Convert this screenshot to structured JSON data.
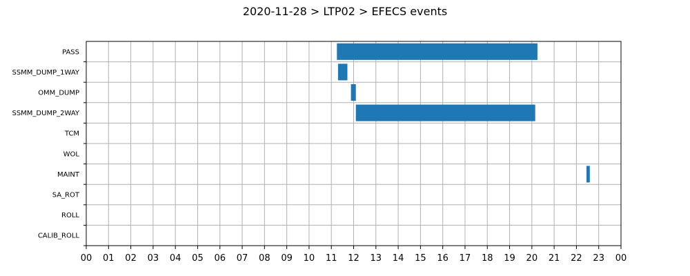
{
  "chart_data": {
    "type": "gantt",
    "title": "2020-11-28 > LTP02 > EFECS events",
    "xlabel": "",
    "ylabel": "",
    "x_unit": "hour of day",
    "xlim": [
      0,
      24
    ],
    "x_tick_labels": [
      "00",
      "01",
      "02",
      "03",
      "04",
      "05",
      "06",
      "07",
      "08",
      "09",
      "10",
      "11",
      "12",
      "13",
      "14",
      "15",
      "16",
      "17",
      "18",
      "19",
      "20",
      "21",
      "22",
      "23",
      "00"
    ],
    "categories": [
      "PASS",
      "SSMM_DUMP_1WAY",
      "OMM_DUMP",
      "SSMM_DUMP_2WAY",
      "TCM",
      "WOL",
      "MAINT",
      "SA_ROT",
      "ROLL",
      "CALIB_ROLL"
    ],
    "grid": true,
    "bar_color": "#1f77b4",
    "events": [
      {
        "category": "PASS",
        "start": 11.25,
        "end": 20.25
      },
      {
        "category": "SSMM_DUMP_1WAY",
        "start": 11.3,
        "end": 11.72
      },
      {
        "category": "OMM_DUMP",
        "start": 11.88,
        "end": 12.1
      },
      {
        "category": "SSMM_DUMP_2WAY",
        "start": 12.1,
        "end": 20.15
      },
      {
        "category": "MAINT",
        "start": 22.45,
        "end": 22.6
      }
    ]
  }
}
